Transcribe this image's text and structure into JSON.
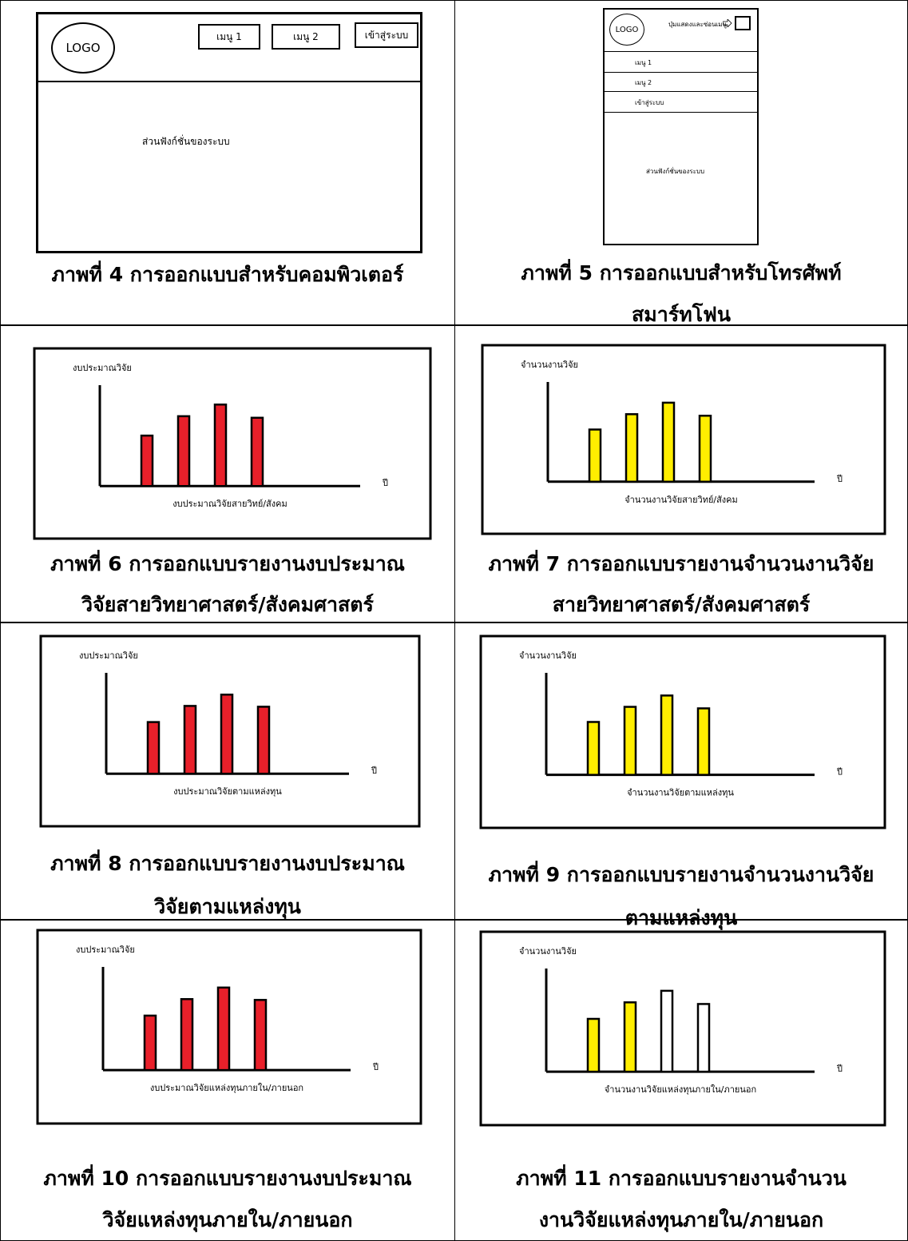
{
  "desktop": {
    "logo": "LOGO",
    "menu1": "เมนู 1",
    "menu2": "เมนู 2",
    "login": "เข้าสู่ระบบ",
    "content": "ส่วนฟังก์ชั่นของระบบ",
    "caption": "ภาพที่ 4 การออกแบบสำหรับคอมพิวเตอร์"
  },
  "mobile": {
    "logo": "LOGO",
    "toggle": "ปุ่มแสดงและซ่อนเมนู",
    "menu1": "เมนู 1",
    "menu2": "เมนู 2",
    "login": "เข้าสู่ระบบ",
    "content": "ส่วนฟังก์ชั่นของระบบ",
    "caption_line1": "ภาพที่ 5 การออกแบบสำหรับโทรศัพท์",
    "caption_line2": "สมาร์ทโฟน"
  },
  "colors": {
    "red": "#e8202a",
    "yellow": "#ffee00",
    "white": "#ffffff"
  },
  "chart_data": [
    {
      "type": "bar",
      "ylabel": "งบประมาณวิจัย",
      "xlabel": "ปี",
      "subtitle": "งบประมาณวิจัยสายวิทย์/สังคม",
      "values": [
        65,
        90,
        105,
        88
      ],
      "ylim": [
        0,
        130
      ],
      "fills": [
        "red",
        "red",
        "red",
        "red"
      ],
      "caption": [
        "ภาพที่ 6 การออกแบบรายงานงบประมาณ",
        "วิจัยสายวิทยาศาสตร์/สังคมศาสตร์"
      ]
    },
    {
      "type": "bar",
      "ylabel": "จำนวนงานวิจัย",
      "xlabel": "ปี",
      "subtitle": "จำนวนงานวิจัยสายวิทย์/สังคม",
      "values": [
        68,
        88,
        103,
        86
      ],
      "ylim": [
        0,
        130
      ],
      "fills": [
        "yellow",
        "yellow",
        "yellow",
        "yellow"
      ],
      "caption": [
        "ภาพที่ 7 การออกแบบรายงานจำนวนงานวิจัย",
        "สายวิทยาศาสตร์/สังคมศาสตร์"
      ]
    },
    {
      "type": "bar",
      "ylabel": "งบประมาณวิจัย",
      "xlabel": "ปี",
      "subtitle": "งบประมาณวิจัยตามแหล่งทุน",
      "values": [
        64,
        84,
        98,
        83
      ],
      "ylim": [
        0,
        125
      ],
      "fills": [
        "red",
        "red",
        "red",
        "red"
      ],
      "caption": [
        "ภาพที่ 8 การออกแบบรายงานงบประมาณ",
        "วิจัยตามแหล่งทุน"
      ]
    },
    {
      "type": "bar",
      "ylabel": "จำนวนงานวิจัย",
      "xlabel": "ปี",
      "subtitle": "จำนวนงานวิจัยตามแหล่งทุน",
      "values": [
        70,
        90,
        105,
        88
      ],
      "ylim": [
        0,
        135
      ],
      "fills": [
        "yellow",
        "yellow",
        "yellow",
        "yellow"
      ],
      "caption": [
        "ภาพที่ 9 การออกแบบรายงานจำนวนงานวิจัย",
        "ตามแหล่งทุน"
      ]
    },
    {
      "type": "bar",
      "ylabel": "งบประมาณวิจัย",
      "xlabel": "ปี",
      "subtitle": "งบประมาณวิจัยแหล่งทุนภายใน/ภายนอก",
      "values": [
        66,
        86,
        100,
        85
      ],
      "ylim": [
        0,
        125
      ],
      "fills": [
        "red",
        "red",
        "red",
        "red"
      ],
      "caption": [
        "ภาพที่ 10 การออกแบบรายงานงบประมาณ",
        "วิจัยแหล่งทุนภายใน/ภายนอก"
      ]
    },
    {
      "type": "bar",
      "ylabel": "จำนวนงานวิจัย",
      "xlabel": "ปี",
      "subtitle": "จำนวนงานวิจัยแหล่งทุนภายใน/ภายนอก",
      "values": [
        64,
        84,
        98,
        82
      ],
      "ylim": [
        0,
        125
      ],
      "fills": [
        "yellow",
        "yellow",
        "white",
        "white"
      ],
      "caption": [
        "ภาพที่ 11 การออกแบบรายงานจำนวน",
        "งานวิจัยแหล่งทุนภายใน/ภายนอก"
      ]
    }
  ]
}
